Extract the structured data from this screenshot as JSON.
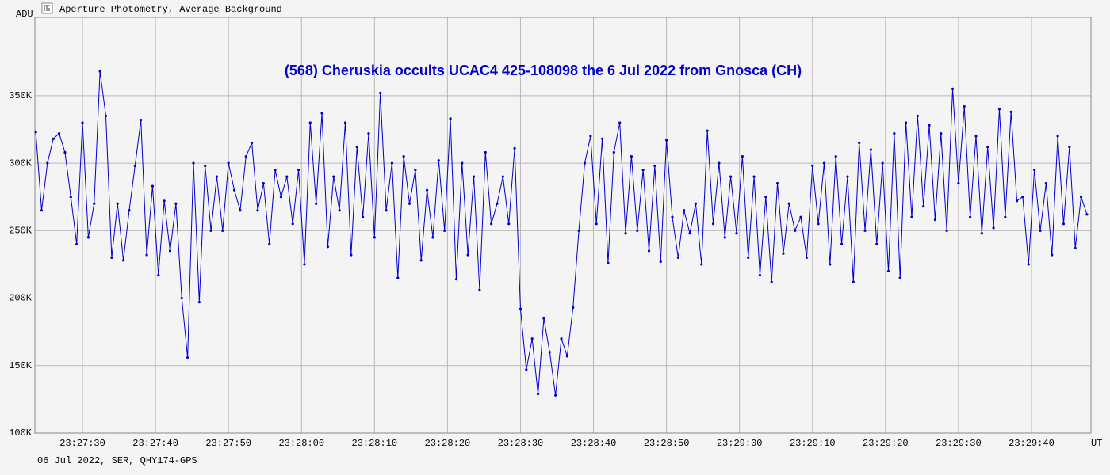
{
  "window_title": "Aperture Photometry, Average Background",
  "footer": "06 Jul 2022, SER, QHY174-GPS",
  "chart_data": {
    "type": "line",
    "title": "(568) Cheruskia occults UCAC4 425-108098 the 6 Jul 2022 from Gnosca (CH)",
    "y_label": "ADU",
    "x_label": "UT",
    "x": [
      23.6,
      24.4,
      25.2,
      26,
      26.8,
      27.6,
      28.4,
      29.2,
      30,
      30.8,
      31.6,
      32.4,
      33.2,
      34,
      34.8,
      35.6,
      36.4,
      37.2,
      38,
      38.8,
      39.6,
      40.4,
      41.2,
      42,
      42.8,
      43.6,
      44.4,
      45.2,
      46,
      46.8,
      47.6,
      48.4,
      49.2,
      50,
      50.8,
      51.6,
      52.4,
      53.2,
      54,
      54.8,
      55.6,
      56.4,
      57.2,
      58,
      58.8,
      59.6,
      60.4,
      61.2,
      62,
      62.8,
      63.6,
      64.4,
      65.2,
      66,
      66.8,
      67.6,
      68.4,
      69.2,
      70,
      70.8,
      71.6,
      72.4,
      73.2,
      74,
      74.8,
      75.6,
      76.4,
      77.2,
      78,
      78.8,
      79.6,
      80.4,
      81.2,
      82,
      82.8,
      83.6,
      84.4,
      85.2,
      86,
      86.8,
      87.6,
      88.4,
      89.2,
      90,
      90.8,
      91.6,
      92.4,
      93.2,
      94,
      94.8,
      95.6,
      96.4,
      97.2,
      98,
      98.8,
      99.6,
      100.4,
      101.2,
      102,
      102.8,
      103.6,
      104.4,
      105.2,
      106,
      106.8,
      107.6,
      108.4,
      109.2,
      110,
      110.8,
      111.6,
      112.4,
      113.2,
      114,
      114.8,
      115.6,
      116.4,
      117.2,
      118,
      118.8,
      119.6,
      120.4,
      121.2,
      122,
      122.8,
      123.6,
      124.4,
      125.2,
      126,
      126.8,
      127.6,
      128.4,
      129.2,
      130,
      130.8,
      131.6,
      132.4,
      133.2,
      134,
      134.8,
      135.6,
      136.4,
      137.2,
      138,
      138.8,
      139.6,
      140.4,
      141.2,
      142,
      142.8,
      143.6,
      144.4,
      145.2,
      146,
      146.8,
      147.6,
      148.4,
      149.2,
      150,
      150.8,
      151.6,
      152.4,
      153.2,
      154,
      154.8,
      155.6,
      156.4,
      157.2,
      158,
      158.8,
      159.6,
      160.4,
      161.2,
      162,
      162.8,
      163.6,
      164.4,
      165.2,
      166,
      166.8,
      167.6
    ],
    "series": [
      {
        "color": "#0000cc",
        "values": [
          323000,
          265000,
          300000,
          318000,
          322000,
          308000,
          275000,
          240000,
          330000,
          245000,
          270000,
          368000,
          335000,
          230000,
          270000,
          228000,
          265000,
          298000,
          332000,
          232000,
          283000,
          217000,
          272000,
          235000,
          270000,
          200000,
          156000,
          300000,
          197000,
          298000,
          250000,
          290000,
          250000,
          300000,
          280000,
          265000,
          305000,
          315000,
          265000,
          285000,
          240000,
          295000,
          275000,
          290000,
          255000,
          295000,
          225000,
          330000,
          270000,
          337000,
          238000,
          290000,
          265000,
          330000,
          232000,
          312000,
          260000,
          322000,
          245000,
          352000,
          265000,
          300000,
          215000,
          305000,
          270000,
          295000,
          228000,
          280000,
          245000,
          302000,
          250000,
          333000,
          214000,
          300000,
          232000,
          290000,
          206000,
          308000,
          255000,
          270000,
          290000,
          255000,
          311000,
          192000,
          147000,
          170000,
          129000,
          185000,
          160000,
          128000,
          170000,
          157000,
          193000,
          250000,
          300000,
          320000,
          255000,
          318000,
          226000,
          308000,
          330000,
          248000,
          305000,
          250000,
          295000,
          235000,
          298000,
          227000,
          317000,
          260000,
          230000,
          265000,
          248000,
          270000,
          225000,
          324000,
          255000,
          300000,
          245000,
          290000,
          248000,
          305000,
          230000,
          290000,
          217000,
          275000,
          212000,
          285000,
          233000,
          270000,
          250000,
          260000,
          230000,
          298000,
          255000,
          300000,
          225000,
          305000,
          240000,
          290000,
          212000,
          315000,
          250000,
          310000,
          240000,
          300000,
          220000,
          322000,
          215000,
          330000,
          260000,
          335000,
          268000,
          328000,
          258000,
          322000,
          250000,
          355000,
          285000,
          342000,
          260000,
          320000,
          248000,
          312000,
          252000,
          340000,
          260000,
          338000,
          272000,
          275000,
          225000,
          295000,
          250000,
          285000,
          232000,
          320000,
          255000,
          312000,
          237000,
          275000,
          262000
        ]
      }
    ],
    "xlim": [
      23.48,
      168.15
    ],
    "xticks": [
      {
        "value": 30,
        "label": "23:27:30"
      },
      {
        "value": 40,
        "label": "23:27:40"
      },
      {
        "value": 50,
        "label": "23:27:50"
      },
      {
        "value": 60,
        "label": "23:28:00"
      },
      {
        "value": 70,
        "label": "23:28:10"
      },
      {
        "value": 80,
        "label": "23:28:20"
      },
      {
        "value": 90,
        "label": "23:28:30"
      },
      {
        "value": 100,
        "label": "23:28:40"
      },
      {
        "value": 110,
        "label": "23:28:50"
      },
      {
        "value": 120,
        "label": "23:29:00"
      },
      {
        "value": 130,
        "label": "23:29:10"
      },
      {
        "value": 140,
        "label": "23:29:20"
      },
      {
        "value": 150,
        "label": "23:29:30"
      },
      {
        "value": 160,
        "label": "23:29:40"
      }
    ],
    "ylim": [
      100000,
      408000
    ],
    "yticks": [
      {
        "value": 100000,
        "label": "100K"
      },
      {
        "value": 150000,
        "label": "150K"
      },
      {
        "value": 200000,
        "label": "200K"
      },
      {
        "value": 250000,
        "label": "250K"
      },
      {
        "value": 300000,
        "label": "300K"
      },
      {
        "value": 350000,
        "label": "350K"
      }
    ],
    "grid": true
  }
}
